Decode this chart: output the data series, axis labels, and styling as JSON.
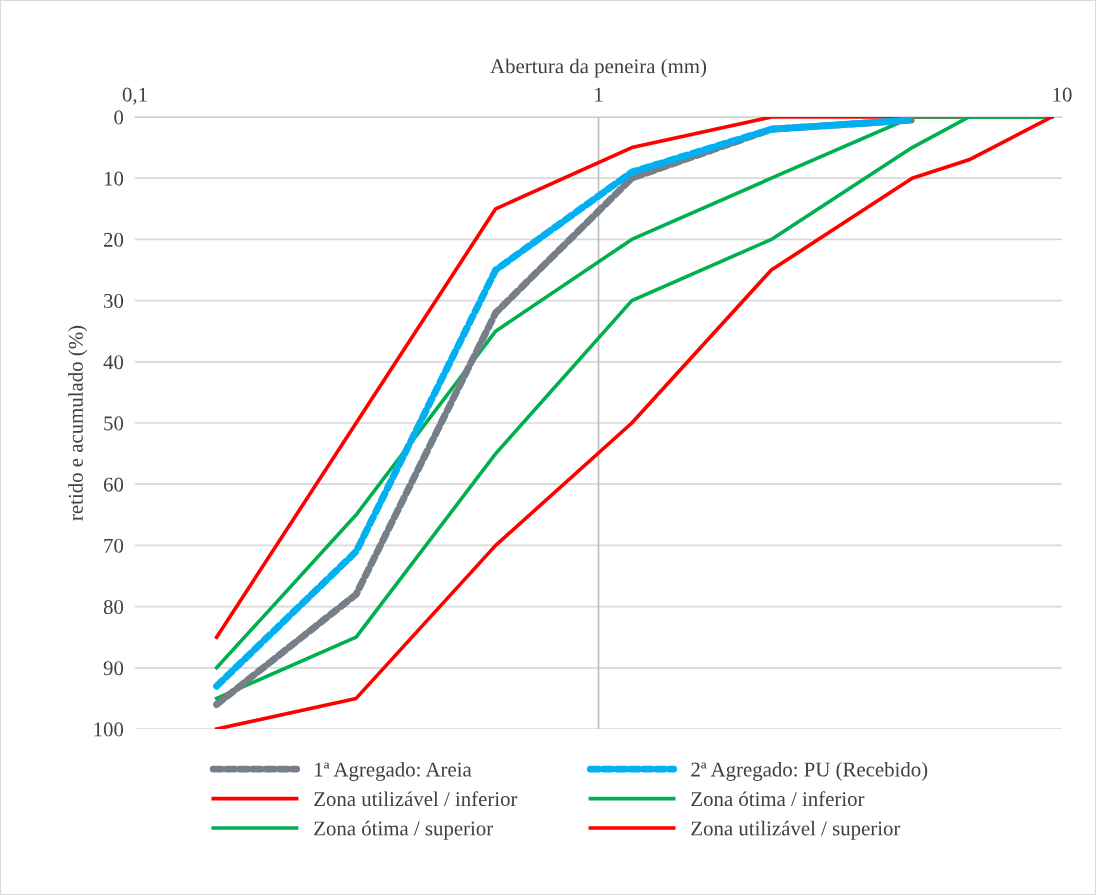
{
  "chart_data": {
    "type": "line",
    "xlabel": "Abertura da peneira (mm)",
    "ylabel": "retido e acumulado (%)",
    "x": [
      0.15,
      0.3,
      0.6,
      1.18,
      2.36,
      4.75,
      6.3,
      9.5
    ],
    "log": "x",
    "xlim": [
      0.1,
      10
    ],
    "xticks": [
      {
        "value": 0.1,
        "label": "0,1"
      },
      1,
      10
    ],
    "ylim": [
      100,
      0
    ],
    "yticks": [
      0,
      10,
      20,
      30,
      40,
      50,
      60,
      70,
      80,
      90,
      100
    ],
    "grid": "y",
    "legend": "bottom",
    "marker": "none",
    "ref_lines": [
      {
        "axis": "x",
        "value": 1,
        "color": "#bfbfbf"
      }
    ],
    "series": [
      {
        "name": "1ª Agregado: Areia",
        "color": "#767f87",
        "line_style": "dashed",
        "x": [
          0.15,
          0.3,
          0.6,
          1.18,
          2.36,
          4.75
        ],
        "values": [
          96,
          78,
          32,
          10,
          2,
          0.5
        ]
      },
      {
        "name": "2ª Agregado: PU (Recebido)",
        "color": "#00b0f0",
        "line_style": "dashed",
        "x": [
          0.15,
          0.3,
          0.6,
          1.18,
          2.36,
          4.75
        ],
        "values": [
          93,
          71,
          25,
          9,
          2,
          0.5
        ]
      },
      {
        "name": "Zona utilizável / inferior",
        "color": "#ff0000",
        "line_style": "solid",
        "values": [
          85,
          50,
          15,
          5,
          0,
          0,
          0,
          0
        ]
      },
      {
        "name": "Zona ótima / inferior",
        "color": "#00b050",
        "line_style": "solid",
        "values": [
          90,
          65,
          35,
          20,
          10,
          0,
          0,
          0
        ]
      },
      {
        "name": "Zona ótima / superior",
        "color": "#00b050",
        "line_style": "solid",
        "values": [
          95,
          85,
          55,
          30,
          20,
          5,
          0,
          0
        ]
      },
      {
        "name": "Zona utilizável / superior",
        "color": "#ff0000",
        "line_style": "solid",
        "values": [
          100,
          95,
          70,
          50,
          25,
          10,
          7,
          0
        ]
      }
    ]
  }
}
